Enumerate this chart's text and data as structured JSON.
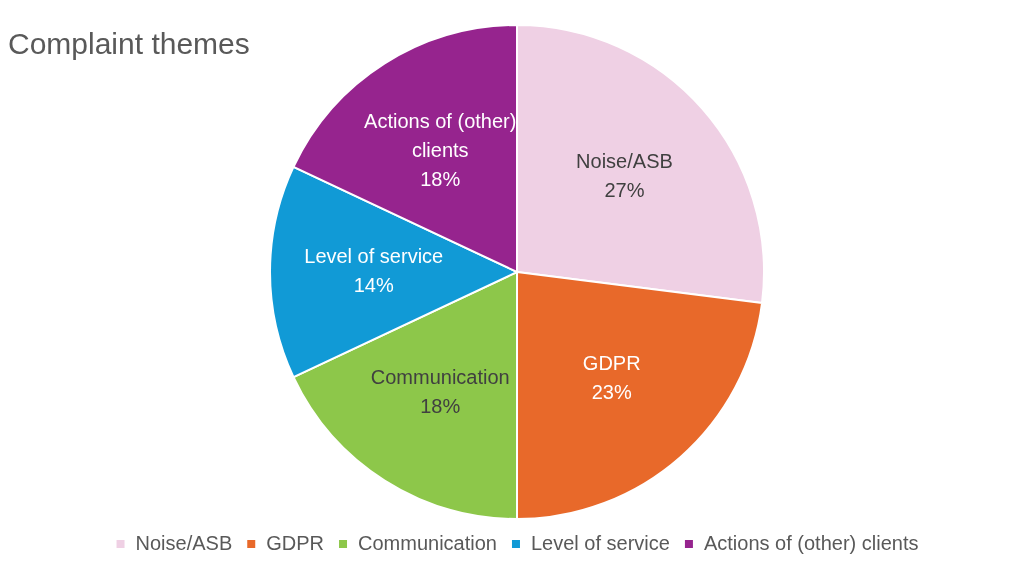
{
  "chart_data": {
    "type": "pie",
    "title": "Complaint themes",
    "categories": [
      "Noise/ASB",
      "GDPR",
      "Communication",
      "Level of service",
      "Actions of (other) clients"
    ],
    "values": [
      27,
      23,
      18,
      14,
      18
    ],
    "value_labels": [
      "27%",
      "23%",
      "18%",
      "14%",
      "18%"
    ],
    "colors": [
      "#efd0e4",
      "#e8692a",
      "#8dc74a",
      "#119ad6",
      "#96248e"
    ],
    "legend": "bottom"
  }
}
